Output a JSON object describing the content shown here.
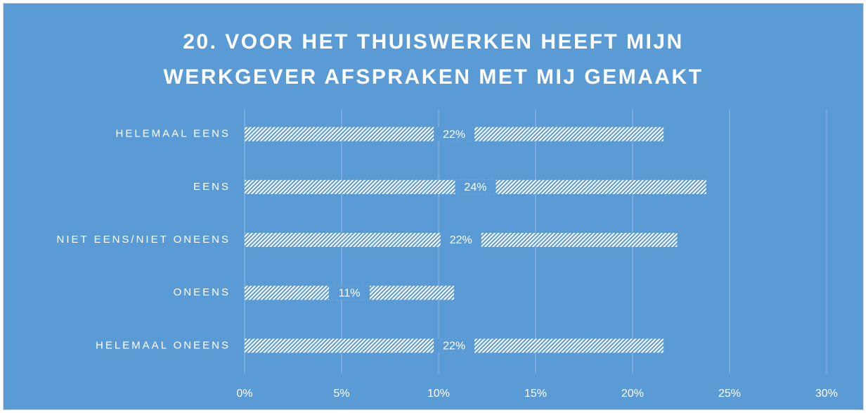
{
  "chart_data": {
    "type": "hbar",
    "title": "20. VOOR HET THUISWERKEN HEEFT MIJN WERKGEVER AFSPRAKEN MET MIJ GEMAAKT",
    "categories": [
      "HELEMAAL EENS",
      "EENS",
      "NIET EENS/NIET ONEENS",
      "ONEENS",
      "HELEMAAL ONEENS"
    ],
    "values": [
      21.6,
      23.8,
      22.3,
      10.8,
      21.6
    ],
    "value_labels": [
      "22%",
      "24%",
      "22%",
      "11%",
      "22%"
    ],
    "color": "#ffffff",
    "xlim": [
      0,
      30
    ],
    "xticks": [
      {
        "value": 0,
        "label": "0%"
      },
      {
        "value": 5,
        "label": "5%"
      },
      {
        "value": 10,
        "label": "10%"
      },
      {
        "value": 15,
        "label": "15%"
      },
      {
        "value": 20,
        "label": "20%"
      },
      {
        "value": 25,
        "label": "25%"
      },
      {
        "value": 30,
        "label": "30%"
      }
    ],
    "grid": true
  }
}
